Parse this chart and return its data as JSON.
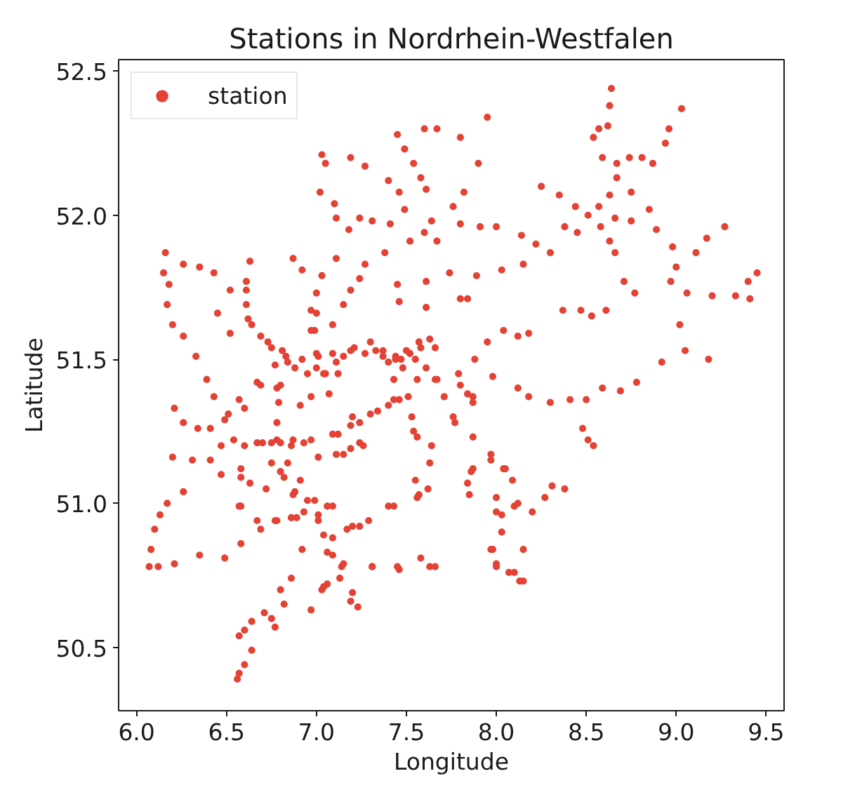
{
  "chart_data": {
    "type": "scatter",
    "title": "Stations in Nordrhein-Westfalen",
    "xlabel": "Longitude",
    "ylabel": "Latitude",
    "xlim": [
      5.9,
      9.6
    ],
    "ylim": [
      50.28,
      52.54
    ],
    "xticks": [
      {
        "value": 6,
        "label": "6.0"
      },
      6.5,
      {
        "value": 7,
        "label": "7.0"
      },
      7.5,
      {
        "value": 8,
        "label": "8.0"
      },
      8.5,
      {
        "value": 9,
        "label": "9.0"
      },
      9.5
    ],
    "yticks": [
      50.5,
      {
        "value": 51,
        "label": "51.0"
      },
      51.5,
      {
        "value": 52,
        "label": "52.0"
      },
      52.5
    ],
    "legend": "top left",
    "marker": "circle",
    "series": [
      {
        "name": "station",
        "color": "#e34234",
        "x": [
          6.16,
          6.15,
          6.18,
          6.17,
          6.2,
          6.26,
          6.33,
          6.39,
          6.43,
          6.21,
          6.26,
          6.34,
          6.41,
          6.51,
          6.6,
          6.26,
          6.35,
          6.43,
          6.52,
          6.45,
          6.63,
          6.61,
          6.61,
          6.64,
          6.69,
          6.75,
          6.81,
          6.87,
          6.92,
          7.0,
          7.03,
          7.11,
          7.0,
          6.99,
          7.0,
          7.09,
          7.15,
          7.19,
          7.24,
          7.09,
          7.03,
          7.05,
          7.02,
          7.1,
          7.11,
          7.18,
          7.24,
          7.31,
          7.19,
          7.27,
          7.4,
          7.45,
          7.49,
          7.54,
          7.58,
          7.61,
          7.6,
          7.67,
          7.8,
          7.95,
          7.9,
          7.82,
          7.76,
          7.64,
          7.6,
          7.46,
          7.49,
          7.41,
          7.52,
          7.38,
          7.27,
          7.45,
          7.46,
          7.61,
          7.61,
          7.67,
          7.74,
          7.8,
          7.84,
          7.89,
          7.8,
          7.91,
          8.0,
          8.03,
          8.15,
          8.14,
          8.22,
          8.3,
          8.25,
          8.35,
          8.44,
          8.51,
          8.58,
          8.63,
          8.66,
          8.71,
          8.77,
          8.38,
          8.45,
          8.54,
          8.57,
          8.62,
          8.63,
          8.64,
          8.59,
          8.67,
          8.67,
          8.63,
          8.57,
          8.75,
          8.74,
          8.81,
          8.87,
          8.94,
          8.96,
          9.03,
          8.85,
          8.75,
          8.66,
          8.89,
          8.98,
          9.0,
          8.97,
          9.06,
          9.11,
          9.17,
          9.27,
          9.2,
          9.33,
          9.4,
          9.45,
          9.41,
          8.37,
          8.47,
          8.53,
          8.61,
          9.02,
          9.05,
          9.18,
          8.92,
          8.78,
          8.69,
          8.59,
          8.5,
          8.41,
          8.3,
          8.18,
          8.12,
          7.98,
          7.88,
          7.95,
          8.04,
          8.12,
          8.18,
          8.48,
          8.51,
          8.54,
          7.37,
          7.44,
          7.52,
          7.58,
          7.66,
          7.27,
          7.21,
          7.15,
          7.12,
          7.0,
          6.92,
          6.84,
          6.77,
          6.69,
          6.8,
          6.91,
          6.97,
          7.07,
          7.2,
          7.24,
          7.12,
          7.34,
          7.43,
          7.51,
          7.67,
          7.71,
          7.8,
          7.87,
          7.77,
          7.87,
          7.64,
          7.54,
          7.43,
          7.61,
          7.15,
          7.26,
          7.4,
          7.47,
          7.33,
          7.55,
          7.05,
          6.95,
          6.54,
          6.67,
          6.78,
          6.87,
          6.97,
          7.01,
          6.84,
          6.91,
          6.95,
          7.01,
          6.87,
          6.8,
          6.72,
          6.63,
          6.58,
          6.47,
          6.41,
          6.2,
          6.31,
          6.26,
          6.17,
          6.13,
          6.1,
          6.08,
          6.07,
          6.12,
          6.21,
          6.35,
          6.49,
          6.58,
          6.58,
          6.69,
          6.77,
          6.89,
          7.09,
          7.2,
          7.29,
          7.43,
          7.57,
          7.55,
          7.09,
          7.09,
          7.15,
          7.31,
          7.46,
          7.58,
          7.66,
          7.06,
          7.13,
          7.2,
          7.23,
          6.97,
          7.03,
          6.92,
          6.86,
          6.82,
          6.77,
          6.71,
          6.64,
          6.6,
          6.57,
          6.64,
          6.6,
          6.57,
          6.56,
          7.97,
          8.04,
          8.09,
          7.86,
          7.85,
          8.0,
          8.03,
          8.12,
          8.2,
          8.03,
          7.98,
          8.0,
          8.07,
          8.15,
          8.15,
          8.27,
          8.31,
          8.38,
          7.3,
          7.37,
          7.44,
          7.5,
          7.57,
          7.63,
          7.48,
          7.19,
          7.11,
          7.04,
          7.01,
          6.97,
          6.97,
          7.09,
          7.19,
          7.3,
          7.4,
          7.46,
          7.11,
          7.19,
          7.24,
          6.78,
          6.79,
          6.78,
          6.75,
          6.8,
          6.86,
          6.93,
          6.7,
          6.6,
          6.47,
          6.75,
          6.82,
          6.88,
          6.93,
          6.99,
          7.01,
          6.58,
          6.57,
          6.67,
          6.78,
          6.86,
          7.06,
          7.17,
          7.24,
          7.04,
          7.06,
          7.14,
          7.19,
          7.04,
          6.8,
          6.75,
          6.61,
          6.62,
          6.52,
          6.73,
          6.83,
          6.88,
          6.67,
          6.57,
          6.49,
          7.56,
          7.66,
          7.79,
          7.84,
          7.76,
          7.87,
          7.53,
          7.56,
          7.63,
          7.62,
          7.87,
          7.97,
          8.05,
          7.84,
          8.0,
          8.1,
          7.97,
          8.0,
          8.1,
          8.13,
          7.4,
          7.56,
          7.31,
          7.45,
          7.63
        ],
        "values": [
          51.87,
          51.8,
          51.76,
          51.69,
          51.62,
          51.58,
          51.51,
          51.43,
          51.37,
          51.33,
          51.28,
          51.26,
          51.26,
          51.31,
          51.33,
          51.83,
          51.82,
          51.8,
          51.74,
          51.66,
          51.84,
          51.77,
          51.69,
          51.62,
          51.58,
          51.54,
          51.53,
          51.85,
          51.81,
          51.73,
          51.79,
          51.85,
          51.66,
          51.6,
          51.52,
          51.62,
          51.69,
          51.74,
          51.78,
          51.52,
          52.21,
          52.18,
          52.08,
          52.04,
          51.99,
          51.95,
          51.99,
          51.98,
          52.2,
          52.17,
          52.12,
          52.28,
          52.23,
          52.18,
          52.13,
          52.09,
          52.3,
          52.3,
          52.27,
          52.34,
          52.18,
          52.08,
          52.03,
          51.98,
          51.94,
          52.08,
          52.02,
          51.97,
          51.91,
          51.87,
          51.83,
          51.76,
          51.7,
          51.77,
          51.68,
          51.91,
          51.8,
          51.71,
          51.71,
          51.79,
          51.97,
          51.96,
          51.96,
          51.81,
          51.83,
          51.93,
          51.9,
          51.87,
          52.1,
          52.07,
          52.03,
          52.0,
          51.96,
          51.91,
          51.87,
          51.77,
          51.73,
          51.96,
          51.94,
          52.27,
          52.3,
          52.31,
          52.38,
          52.44,
          52.2,
          52.18,
          52.13,
          52.07,
          52.03,
          52.08,
          52.2,
          52.2,
          52.18,
          52.25,
          52.3,
          52.37,
          52.02,
          51.98,
          51.99,
          51.95,
          51.89,
          51.82,
          51.77,
          51.73,
          51.87,
          51.92,
          51.96,
          51.72,
          51.72,
          51.77,
          51.8,
          51.71,
          51.67,
          51.67,
          51.65,
          51.67,
          51.62,
          51.53,
          51.5,
          51.49,
          51.42,
          51.39,
          51.4,
          51.36,
          51.36,
          51.35,
          51.37,
          51.4,
          51.44,
          51.5,
          51.56,
          51.6,
          51.58,
          51.59,
          51.26,
          51.22,
          51.2,
          51.51,
          51.51,
          51.52,
          51.54,
          51.54,
          51.52,
          51.54,
          51.51,
          51.45,
          51.47,
          51.5,
          51.49,
          51.48,
          51.41,
          51.41,
          51.34,
          51.37,
          51.38,
          51.3,
          51.28,
          51.24,
          51.32,
          51.36,
          51.37,
          51.43,
          51.37,
          51.41,
          51.37,
          51.28,
          51.23,
          51.2,
          51.25,
          51.43,
          51.47,
          51.17,
          51.2,
          51.49,
          51.5,
          51.53,
          51.5,
          51.45,
          51.45,
          51.22,
          51.21,
          51.22,
          51.22,
          51.22,
          51.16,
          51.14,
          51.08,
          51.01,
          50.94,
          51.03,
          51.11,
          51.05,
          51.07,
          51.12,
          51.1,
          51.15,
          51.16,
          51.15,
          51.04,
          51.0,
          50.96,
          50.91,
          50.84,
          50.78,
          50.78,
          50.79,
          50.82,
          50.81,
          50.86,
          50.99,
          50.91,
          50.94,
          50.95,
          50.99,
          50.92,
          50.94,
          50.99,
          51.03,
          51.08,
          50.88,
          50.82,
          50.79,
          50.78,
          50.77,
          50.81,
          50.78,
          50.72,
          50.74,
          50.69,
          50.64,
          50.63,
          50.7,
          50.84,
          50.74,
          50.65,
          50.57,
          50.62,
          50.59,
          50.56,
          50.54,
          50.49,
          50.44,
          50.41,
          50.39,
          51.17,
          51.12,
          51.08,
          51.11,
          51.03,
          51.02,
          50.96,
          51.0,
          50.97,
          50.9,
          50.84,
          50.79,
          50.76,
          50.73,
          50.84,
          51.02,
          51.06,
          51.05,
          51.56,
          51.53,
          51.5,
          51.53,
          51.56,
          51.57,
          51.47,
          51.53,
          51.49,
          51.45,
          51.51,
          51.67,
          51.6,
          51.24,
          51.27,
          51.31,
          51.34,
          51.36,
          51.17,
          51.19,
          51.21,
          51.4,
          51.35,
          51.28,
          51.21,
          51.21,
          51.2,
          51.21,
          51.21,
          51.2,
          51.2,
          51.14,
          51.09,
          51.04,
          50.97,
          51.01,
          50.96,
          51.09,
          50.99,
          50.94,
          50.94,
          50.95,
          50.99,
          50.91,
          50.92,
          50.89,
          50.83,
          50.78,
          50.66,
          50.71,
          50.7,
          50.6,
          51.74,
          51.64,
          51.59,
          51.56,
          51.51,
          51.47,
          51.42,
          51.36,
          51.29,
          51.43,
          51.43,
          51.45,
          51.38,
          51.3,
          51.35,
          51.3,
          51.23,
          51.14,
          51.05,
          51.12,
          51.15,
          51.12,
          51.07,
          50.97,
          50.99,
          50.84,
          50.78,
          50.76,
          50.73,
          50.99,
          51.02,
          50.78,
          50.78,
          50.78
        ]
      }
    ]
  }
}
